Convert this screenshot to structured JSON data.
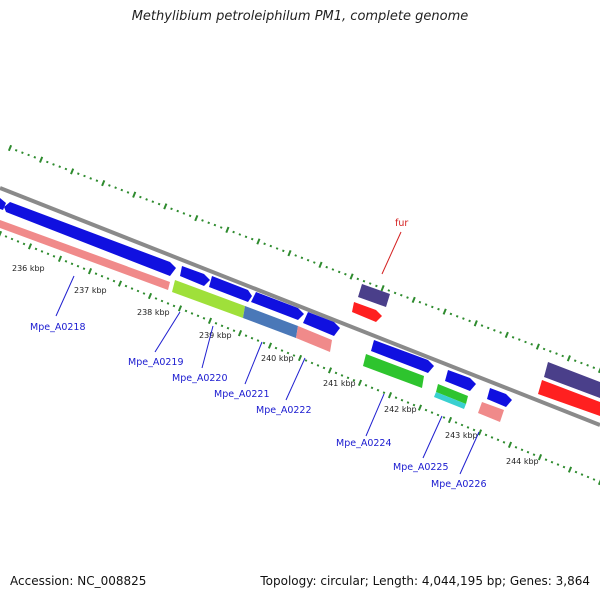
{
  "title": "Methylibium petroleiphilum PM1, complete genome",
  "footer": {
    "accession": "Accession: NC_008825",
    "summary": "Topology: circular; Length: 4,044,195 bp; Genes: 3,864"
  },
  "colors": {
    "backbone": "#8a8a8a",
    "tick": "#2e8b2e",
    "forward_cds": "#1010e0",
    "reverse_cds": "#ff2020",
    "rna_rrna": "#f08a8a",
    "other_a": "#9fe03a",
    "other_b": "#4a78b8",
    "other_c": "#2ec42e",
    "other_d": "#3ad0d0",
    "misc": "#4a3f8a",
    "label_blue": "#1a1ad0",
    "label_red": "#d42020"
  },
  "ticks": [
    {
      "label": "236 kbp"
    },
    {
      "label": "237 kbp"
    },
    {
      "label": "238 kbp"
    },
    {
      "label": "239 kbp"
    },
    {
      "label": "240 kbp"
    },
    {
      "label": "241 kbp"
    },
    {
      "label": "242 kbp"
    },
    {
      "label": "243 kbp"
    },
    {
      "label": "244 kbp"
    }
  ],
  "genes": [
    {
      "label": "Mpe_A0218",
      "kind": "forward_cds"
    },
    {
      "label": "Mpe_A0219",
      "kind": "other_a"
    },
    {
      "label": "Mpe_A0220",
      "kind": "forward_cds"
    },
    {
      "label": "Mpe_A0221",
      "kind": "other_b"
    },
    {
      "label": "Mpe_A0222",
      "kind": "rna_rrna"
    },
    {
      "label": "Mpe_A0224",
      "kind": "other_c"
    },
    {
      "label": "Mpe_A0225",
      "kind": "other_d"
    },
    {
      "label": "Mpe_A0226",
      "kind": "rna_rrna"
    },
    {
      "label": "fur",
      "kind": "reverse_cds"
    }
  ]
}
